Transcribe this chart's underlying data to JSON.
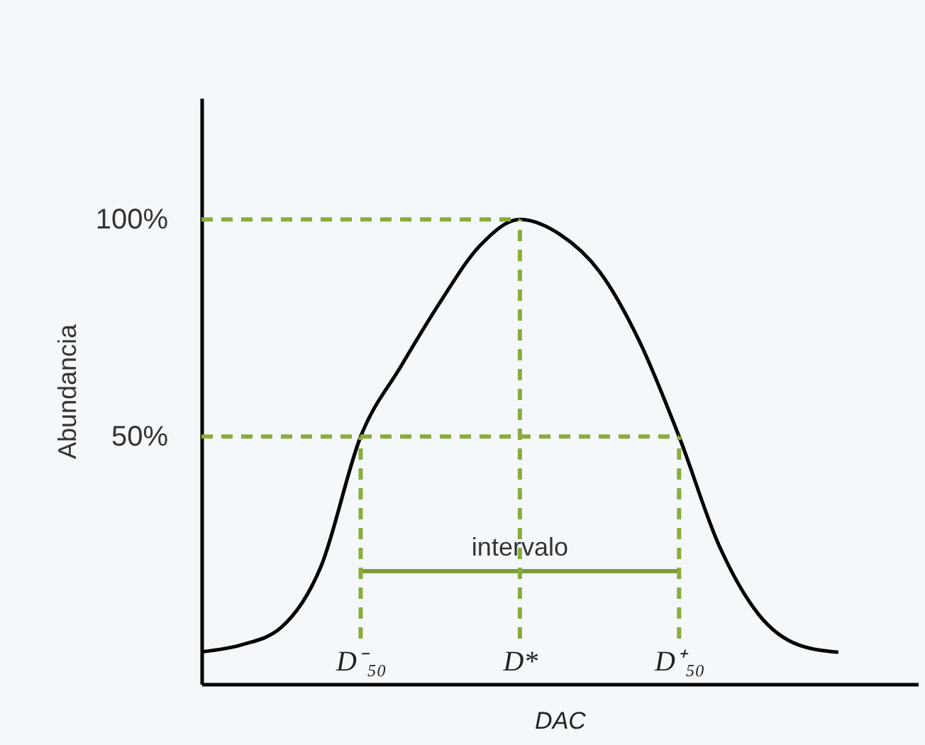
{
  "chart_data": {
    "type": "line",
    "xlabel": "DAC",
    "ylabel": "Abundancia",
    "categories": [
      null,
      null,
      null,
      null,
      "D⁻₅₀",
      null,
      null,
      null,
      "D*",
      null,
      null,
      null,
      "D⁺₅₀",
      null,
      null,
      null,
      null,
      null,
      null
    ],
    "ylim": [
      -7,
      128
    ],
    "yticks": [
      {
        "value": 50,
        "label": "50%"
      },
      {
        "value": 100,
        "label": "100%"
      }
    ],
    "grid": false,
    "marker": "none",
    "line_style": "solid",
    "series": [
      {
        "color": "#000000",
        "values": [
          0.4,
          2,
          6,
          20,
          50,
          66,
          81,
          94,
          100,
          96.6,
          88,
          72,
          50,
          25,
          9,
          2,
          0.3,
          null,
          null
        ]
      },
      {
        "color": "#7d9c3c",
        "values": [
          null,
          null,
          null,
          null,
          19,
          19,
          19,
          19,
          19,
          19,
          19,
          19,
          19,
          null,
          null,
          null,
          null,
          null,
          null
        ]
      }
    ],
    "ref_lines": [
      {
        "axis": "y",
        "value": 100,
        "color": "#8aac3c",
        "line_style": "dashed"
      },
      {
        "axis": "y",
        "value": 50,
        "color": "#8aac3c",
        "line_style": "dashed"
      },
      {
        "axis": "x",
        "value": "D⁻₅₀",
        "color": "#8aac3c",
        "line_style": "dashed"
      },
      {
        "axis": "x",
        "value": "D*",
        "color": "#8aac3c",
        "line_style": "dashed"
      },
      {
        "axis": "x",
        "value": "D⁺₅₀",
        "color": "#8aac3c",
        "line_style": "dashed"
      }
    ],
    "annotations": [
      {
        "text": "intervalo",
        "x": "D*",
        "y": 19
      }
    ]
  }
}
